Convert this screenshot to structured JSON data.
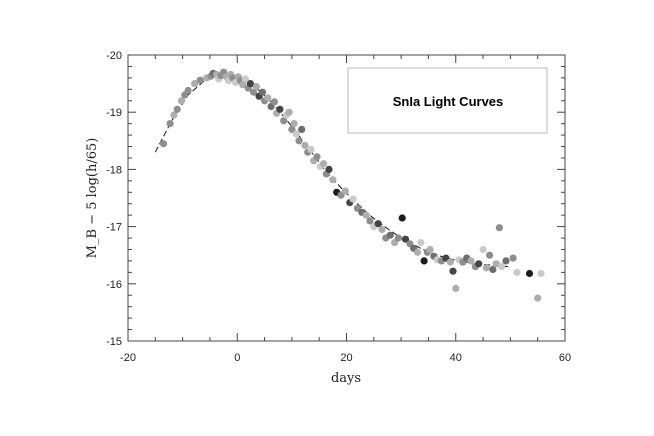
{
  "chart_data": {
    "type": "scatter",
    "title": "",
    "legend_title": "SnIa Light Curves",
    "legend_placement": "top-right",
    "xlabel": "days",
    "ylabel": "M_B − 5 log(h/65)",
    "xlim": [
      -20,
      60
    ],
    "ylim": [
      -15,
      -20
    ],
    "y_inverted": true,
    "x_ticks": [
      -20,
      0,
      20,
      40,
      60
    ],
    "y_ticks": [
      -20,
      -19,
      -18,
      -17,
      -16,
      -15
    ],
    "x_tick_labels": [
      "-20",
      "0",
      "20",
      "40",
      "60"
    ],
    "y_tick_labels": [
      "-20",
      "-19",
      "-18",
      "-17",
      "-16",
      "-15"
    ],
    "grid": false,
    "point_shades": [
      "#1c1c1c",
      "#444444",
      "#6e6e6e",
      "#8e8e8e",
      "#adadad",
      "#cacaca"
    ],
    "template_curve": {
      "x": [
        -15,
        -12,
        -9,
        -6,
        -4,
        -2,
        0,
        2,
        4,
        6,
        8,
        10,
        12,
        14,
        16,
        18,
        20,
        22,
        24,
        26,
        28,
        30,
        32,
        34,
        36,
        38,
        40,
        42,
        44,
        46,
        48,
        50
      ],
      "y": [
        -18.3,
        -18.85,
        -19.3,
        -19.55,
        -19.63,
        -19.65,
        -19.6,
        -19.5,
        -19.38,
        -19.2,
        -18.98,
        -18.75,
        -18.5,
        -18.25,
        -18.0,
        -17.78,
        -17.58,
        -17.4,
        -17.22,
        -17.07,
        -16.93,
        -16.8,
        -16.7,
        -16.6,
        -16.52,
        -16.46,
        -16.41,
        -16.38,
        -16.35,
        -16.33,
        -16.31,
        -16.3
      ]
    },
    "points": [
      {
        "x": -13.5,
        "y": -18.45,
        "s": 3
      },
      {
        "x": -12.3,
        "y": -18.8,
        "s": 3
      },
      {
        "x": -11.6,
        "y": -18.95,
        "s": 4
      },
      {
        "x": -11.0,
        "y": -19.05,
        "s": 3
      },
      {
        "x": -10.2,
        "y": -19.2,
        "s": 4
      },
      {
        "x": -9.6,
        "y": -19.3,
        "s": 3
      },
      {
        "x": -9.0,
        "y": -19.38,
        "s": 3
      },
      {
        "x": -7.8,
        "y": -19.5,
        "s": 4
      },
      {
        "x": -6.8,
        "y": -19.56,
        "s": 3
      },
      {
        "x": -5.6,
        "y": -19.6,
        "s": 4
      },
      {
        "x": -4.8,
        "y": -19.63,
        "s": 3
      },
      {
        "x": -4.4,
        "y": -19.68,
        "s": 2
      },
      {
        "x": -3.8,
        "y": -19.66,
        "s": 4
      },
      {
        "x": -3.4,
        "y": -19.58,
        "s": 5
      },
      {
        "x": -3.0,
        "y": -19.64,
        "s": 3
      },
      {
        "x": -2.5,
        "y": -19.7,
        "s": 3
      },
      {
        "x": -2.0,
        "y": -19.62,
        "s": 4
      },
      {
        "x": -1.6,
        "y": -19.55,
        "s": 5
      },
      {
        "x": -1.2,
        "y": -19.66,
        "s": 4
      },
      {
        "x": -0.8,
        "y": -19.6,
        "s": 3
      },
      {
        "x": -0.3,
        "y": -19.52,
        "s": 5
      },
      {
        "x": 0.2,
        "y": -19.62,
        "s": 4
      },
      {
        "x": 0.6,
        "y": -19.55,
        "s": 3
      },
      {
        "x": 1.0,
        "y": -19.48,
        "s": 4
      },
      {
        "x": 1.5,
        "y": -19.58,
        "s": 5
      },
      {
        "x": 2.0,
        "y": -19.42,
        "s": 3
      },
      {
        "x": 2.4,
        "y": -19.5,
        "s": 1
      },
      {
        "x": 3.0,
        "y": -19.35,
        "s": 3
      },
      {
        "x": 3.5,
        "y": -19.45,
        "s": 4
      },
      {
        "x": 4.0,
        "y": -19.28,
        "s": 1
      },
      {
        "x": 4.6,
        "y": -19.35,
        "s": 2
      },
      {
        "x": 5.0,
        "y": -19.2,
        "s": 3
      },
      {
        "x": 5.6,
        "y": -19.25,
        "s": 4
      },
      {
        "x": 6.2,
        "y": -19.1,
        "s": 2
      },
      {
        "x": 6.8,
        "y": -19.18,
        "s": 3
      },
      {
        "x": 7.2,
        "y": -18.98,
        "s": 4
      },
      {
        "x": 7.8,
        "y": -19.05,
        "s": 1
      },
      {
        "x": 8.5,
        "y": -18.85,
        "s": 3
      },
      {
        "x": 9.0,
        "y": -18.95,
        "s": 5
      },
      {
        "x": 9.5,
        "y": -19.0,
        "s": 4
      },
      {
        "x": 10.0,
        "y": -18.7,
        "s": 3
      },
      {
        "x": 10.4,
        "y": -18.8,
        "s": 4
      },
      {
        "x": 10.8,
        "y": -18.62,
        "s": 5
      },
      {
        "x": 11.3,
        "y": -18.5,
        "s": 3
      },
      {
        "x": 11.8,
        "y": -18.7,
        "s": 2
      },
      {
        "x": 12.4,
        "y": -18.42,
        "s": 4
      },
      {
        "x": 12.9,
        "y": -18.3,
        "s": 3
      },
      {
        "x": 13.5,
        "y": -18.35,
        "s": 5
      },
      {
        "x": 14.0,
        "y": -18.15,
        "s": 4
      },
      {
        "x": 14.6,
        "y": -18.22,
        "s": 3
      },
      {
        "x": 15.2,
        "y": -18.05,
        "s": 5
      },
      {
        "x": 15.8,
        "y": -18.1,
        "s": 4
      },
      {
        "x": 16.3,
        "y": -17.92,
        "s": 3
      },
      {
        "x": 16.8,
        "y": -18.0,
        "s": 1
      },
      {
        "x": 17.5,
        "y": -17.82,
        "s": 4
      },
      {
        "x": 18.2,
        "y": -17.6,
        "s": 0
      },
      {
        "x": 19.0,
        "y": -17.55,
        "s": 3
      },
      {
        "x": 19.8,
        "y": -17.62,
        "s": 4
      },
      {
        "x": 20.6,
        "y": -17.42,
        "s": 1
      },
      {
        "x": 21.2,
        "y": -17.48,
        "s": 5
      },
      {
        "x": 22.0,
        "y": -17.32,
        "s": 3
      },
      {
        "x": 22.8,
        "y": -17.25,
        "s": 2
      },
      {
        "x": 23.6,
        "y": -17.2,
        "s": 4
      },
      {
        "x": 24.3,
        "y": -17.1,
        "s": 3
      },
      {
        "x": 25.0,
        "y": -17.0,
        "s": 5
      },
      {
        "x": 25.8,
        "y": -17.05,
        "s": 1
      },
      {
        "x": 26.5,
        "y": -16.95,
        "s": 4
      },
      {
        "x": 27.2,
        "y": -16.8,
        "s": 3
      },
      {
        "x": 28.0,
        "y": -16.85,
        "s": 2
      },
      {
        "x": 28.8,
        "y": -16.72,
        "s": 4
      },
      {
        "x": 29.5,
        "y": -16.8,
        "s": 3
      },
      {
        "x": 30.2,
        "y": -17.15,
        "s": 0
      },
      {
        "x": 30.8,
        "y": -16.78,
        "s": 1
      },
      {
        "x": 31.6,
        "y": -16.7,
        "s": 3
      },
      {
        "x": 32.3,
        "y": -16.62,
        "s": 2
      },
      {
        "x": 33.0,
        "y": -16.55,
        "s": 4
      },
      {
        "x": 33.6,
        "y": -16.72,
        "s": 5
      },
      {
        "x": 34.2,
        "y": -16.4,
        "s": 0
      },
      {
        "x": 34.8,
        "y": -16.55,
        "s": 3
      },
      {
        "x": 35.3,
        "y": -16.6,
        "s": 4
      },
      {
        "x": 36.0,
        "y": -16.48,
        "s": 2
      },
      {
        "x": 36.6,
        "y": -16.42,
        "s": 5
      },
      {
        "x": 37.4,
        "y": -16.4,
        "s": 3
      },
      {
        "x": 38.2,
        "y": -16.45,
        "s": 1
      },
      {
        "x": 39.0,
        "y": -16.38,
        "s": 4
      },
      {
        "x": 39.5,
        "y": -16.22,
        "s": 1
      },
      {
        "x": 40.0,
        "y": -15.92,
        "s": 4
      },
      {
        "x": 40.6,
        "y": -16.42,
        "s": 5
      },
      {
        "x": 41.3,
        "y": -16.38,
        "s": 3
      },
      {
        "x": 42.0,
        "y": -16.45,
        "s": 2
      },
      {
        "x": 42.8,
        "y": -16.4,
        "s": 4
      },
      {
        "x": 43.6,
        "y": -16.3,
        "s": 3
      },
      {
        "x": 44.2,
        "y": -16.35,
        "s": 1
      },
      {
        "x": 45.0,
        "y": -16.6,
        "s": 5
      },
      {
        "x": 45.6,
        "y": -16.28,
        "s": 4
      },
      {
        "x": 46.2,
        "y": -16.5,
        "s": 3
      },
      {
        "x": 46.8,
        "y": -16.25,
        "s": 2
      },
      {
        "x": 47.4,
        "y": -16.35,
        "s": 4
      },
      {
        "x": 48.0,
        "y": -16.98,
        "s": 3
      },
      {
        "x": 48.4,
        "y": -16.3,
        "s": 5
      },
      {
        "x": 49.2,
        "y": -16.4,
        "s": 2
      },
      {
        "x": 50.5,
        "y": -16.45,
        "s": 3
      },
      {
        "x": 51.2,
        "y": -16.2,
        "s": 5
      },
      {
        "x": 53.5,
        "y": -16.18,
        "s": 0
      },
      {
        "x": 55.0,
        "y": -15.75,
        "s": 4
      },
      {
        "x": 55.6,
        "y": -16.18,
        "s": 5
      }
    ]
  }
}
